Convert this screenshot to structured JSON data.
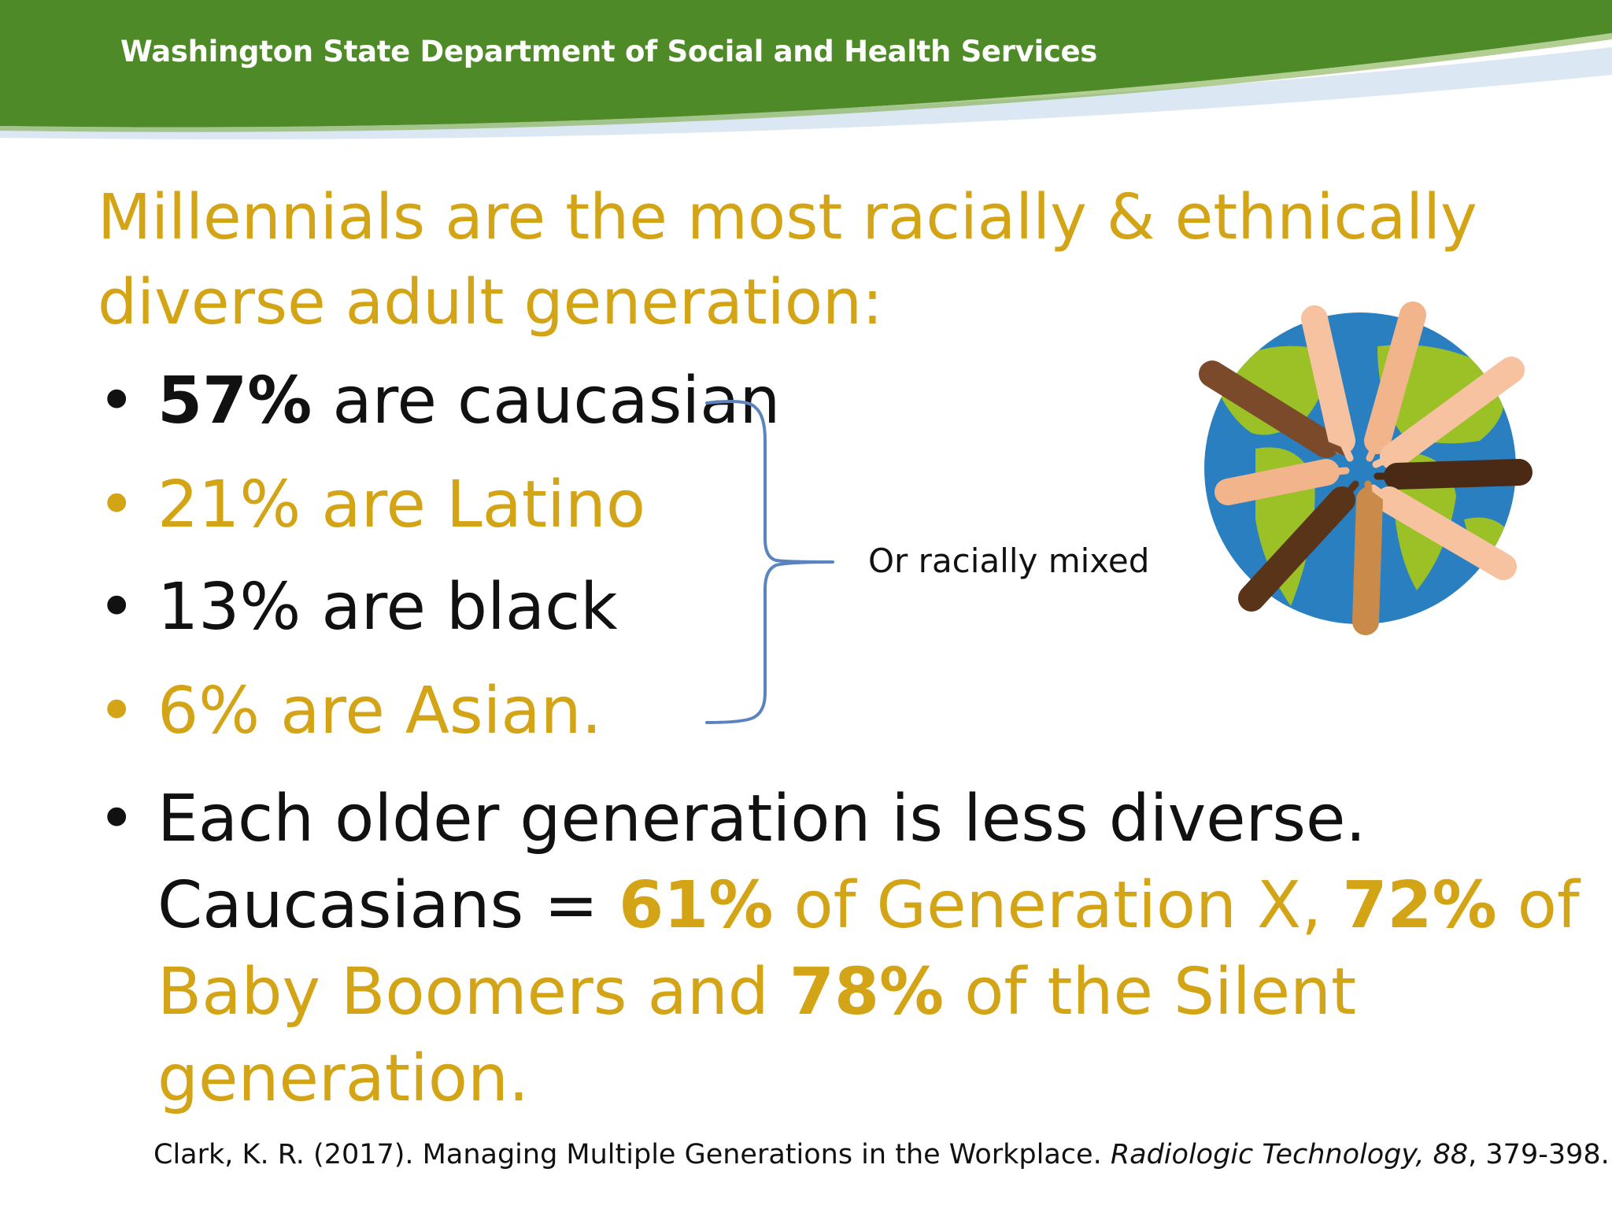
{
  "header": {
    "org_name": "Washington State Department of Social and Health Services",
    "bar_color": "#4f8a28",
    "swoosh_color": "#dbe7f2"
  },
  "slide": {
    "heading_line1": "Millennials are the most racially & ethnically",
    "heading_line2": "diverse adult generation:",
    "bullets": [
      {
        "marker": "•",
        "value": "57%",
        "text": " are caucasian"
      },
      {
        "marker": "•",
        "text": "21% are Latino"
      },
      {
        "marker": "•",
        "text": "13% are black"
      },
      {
        "marker": "•",
        "text": "6% are Asian."
      }
    ],
    "brace_label": "Or racially mixed",
    "generations": {
      "marker": "•",
      "line1": "Each older generation is less diverse.",
      "line2_prefix": "Caucasians = ",
      "genx_value": "61%",
      "genx_text": " of Generation X, ",
      "boomers_value": "72%",
      "boomers_text_a": " of",
      "boomers_text_b": "Baby Boomers and ",
      "silent_value": "78%",
      "silent_text_a": " of the Silent",
      "silent_text_b": "generation."
    },
    "citation": {
      "prefix": "Clark, K. R. (2017). Managing Multiple Generations in the Workplace. ",
      "journal": "Radiologic Technology, 88",
      "suffix": ", 379-398."
    },
    "colors": {
      "accent_gold": "#d4a417",
      "text_black": "#111111",
      "brace_blue": "#5b84bf"
    },
    "image_icon": "globe-hands-icon"
  }
}
